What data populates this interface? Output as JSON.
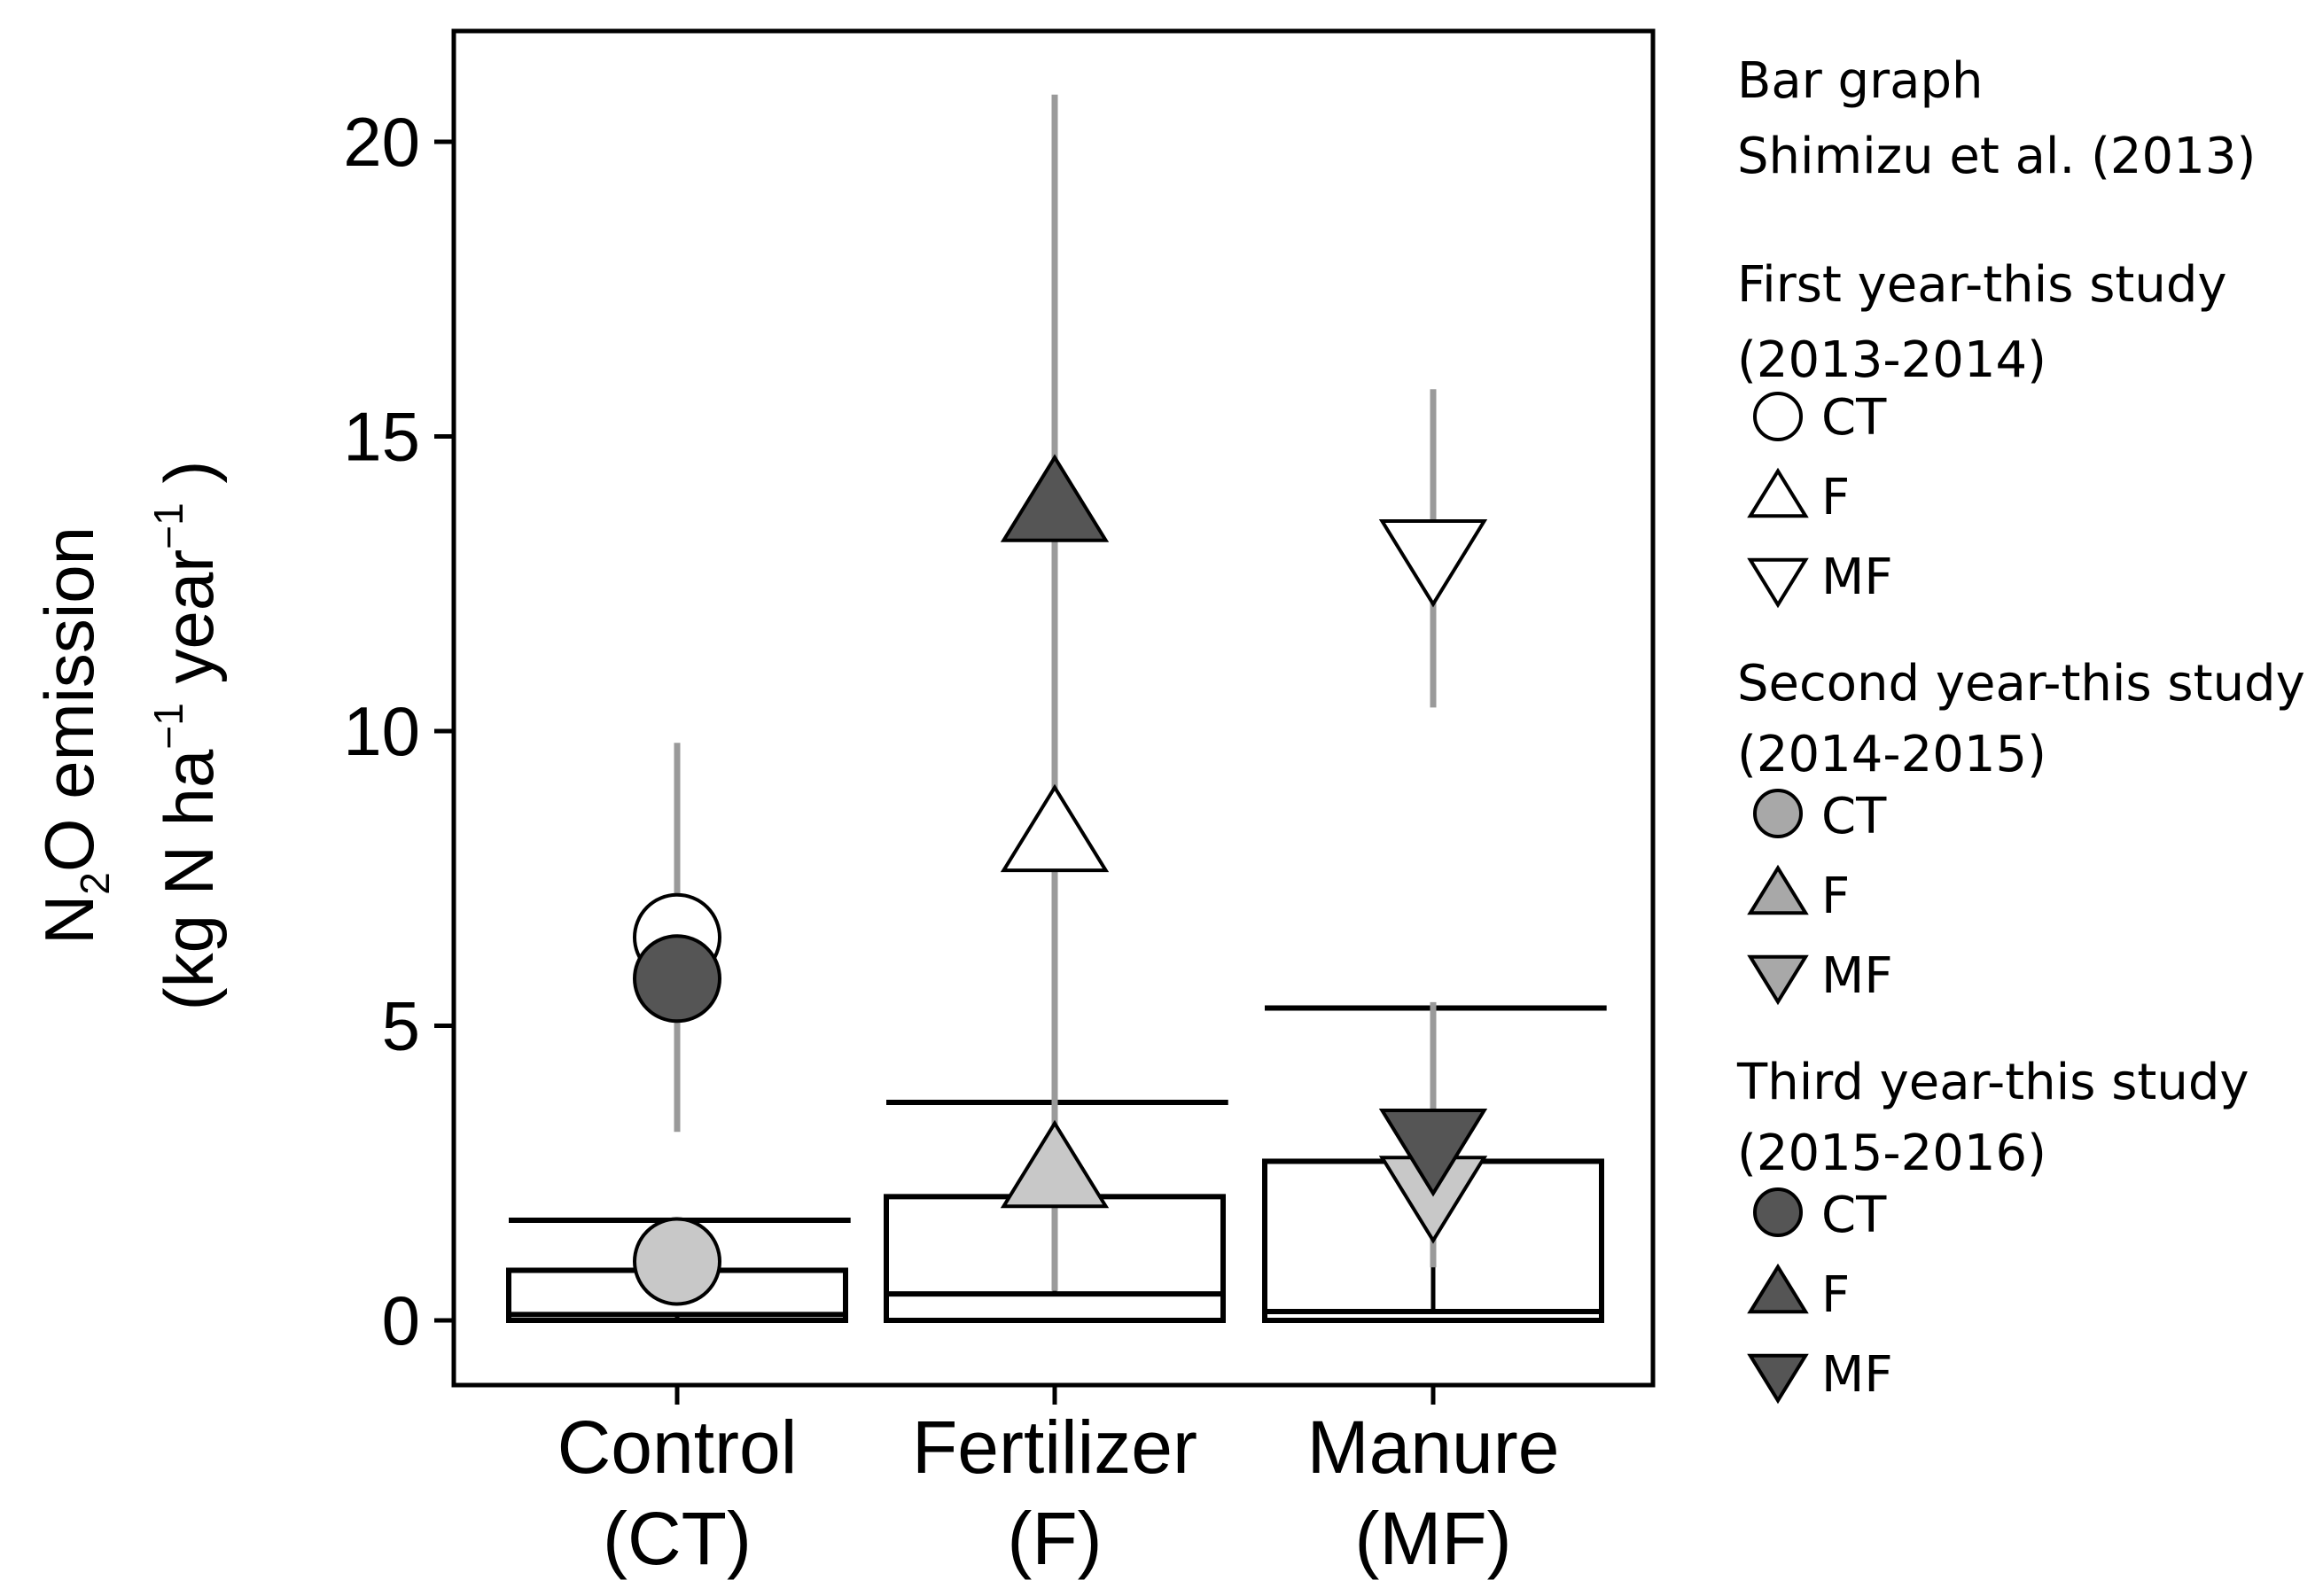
{
  "chart_data": {
    "type": "scatter",
    "title": "",
    "ylabel": {
      "line1_prefix": "N",
      "line1_sub": "2",
      "line1_suffix": "O emission",
      "line2_a": "(kg N ha",
      "line2_sup1": "−1",
      "line2_b": " year",
      "line2_sup2": "−1",
      "line2_c": " )"
    },
    "ylim": [
      -1,
      22
    ],
    "yticks": [
      0,
      5,
      10,
      15,
      20
    ],
    "categories": [
      {
        "line1": "Control",
        "line2": "(CT)"
      },
      {
        "line1": "Fertilizer",
        "line2": "(F)"
      },
      {
        "line1": "Manure",
        "line2": "(MF)"
      }
    ],
    "bars": [
      {
        "category": 0,
        "value": 0.85,
        "mean_line": 0.1,
        "upper": 1.7,
        "whisker": [
          0.0,
          0.1
        ]
      },
      {
        "category": 1,
        "value": 2.1,
        "mean_line": 0.45,
        "upper": 3.7,
        "whisker": [
          0.45,
          3.6
        ]
      },
      {
        "category": 2,
        "value": 2.7,
        "mean_line": 0.15,
        "upper": 5.3,
        "whisker": [
          0.15,
          1.0
        ]
      }
    ],
    "series": [
      {
        "name": "First year CT",
        "category": 0,
        "shape": "circle",
        "fill": "#ffffff",
        "value": 6.5,
        "err": [
          3.2,
          9.8
        ]
      },
      {
        "name": "Second year CT",
        "category": 0,
        "shape": "circle",
        "fill": "#c8c8c8",
        "value": 1.0,
        "err": null
      },
      {
        "name": "Third year CT",
        "category": 0,
        "shape": "circle",
        "fill": "#555555",
        "value": 5.8,
        "err": null
      },
      {
        "name": "First year F",
        "category": 1,
        "shape": "triangle-up",
        "fill": "#ffffff",
        "value": 8.2,
        "err": [
          6.3,
          10.0
        ]
      },
      {
        "name": "Second year F",
        "category": 1,
        "shape": "triangle-up",
        "fill": "#c8c8c8",
        "value": 2.5,
        "err": [
          0.5,
          6.4
        ]
      },
      {
        "name": "Third year F",
        "category": 1,
        "shape": "triangle-up",
        "fill": "#555555",
        "value": 13.8,
        "err": [
          4.0,
          20.8
        ]
      },
      {
        "name": "First year MF",
        "category": 2,
        "shape": "triangle-down",
        "fill": "#ffffff",
        "value": 13.0,
        "err": [
          10.4,
          15.8
        ]
      },
      {
        "name": "Second year MF",
        "category": 2,
        "shape": "triangle-down",
        "fill": "#c8c8c8",
        "value": 2.2,
        "err": [
          0.9,
          3.5
        ]
      },
      {
        "name": "Third year MF",
        "category": 2,
        "shape": "triangle-down",
        "fill": "#555555",
        "value": 3.0,
        "err": [
          1.0,
          5.4
        ]
      }
    ],
    "legend": {
      "bar_title": "Bar graph",
      "bar_source": "Shimizu et al. (2013)",
      "groups": [
        {
          "title": "First year-this study",
          "period": "(2013-2014)",
          "fill": "#ffffff",
          "items": [
            {
              "shape": "circle",
              "label": "CT"
            },
            {
              "shape": "triangle-up",
              "label": "F"
            },
            {
              "shape": "triangle-down",
              "label": "MF"
            }
          ]
        },
        {
          "title": "Second year-this study",
          "period": "(2014-2015)",
          "fill": "#a8a8a8",
          "items": [
            {
              "shape": "circle",
              "label": "CT"
            },
            {
              "shape": "triangle-up",
              "label": "F"
            },
            {
              "shape": "triangle-down",
              "label": "MF"
            }
          ]
        },
        {
          "title": "Third year-this study",
          "period": "(2015-2016)",
          "fill": "#555555",
          "items": [
            {
              "shape": "circle",
              "label": "CT"
            },
            {
              "shape": "triangle-up",
              "label": "F"
            },
            {
              "shape": "triangle-down",
              "label": "MF"
            }
          ]
        }
      ]
    }
  }
}
